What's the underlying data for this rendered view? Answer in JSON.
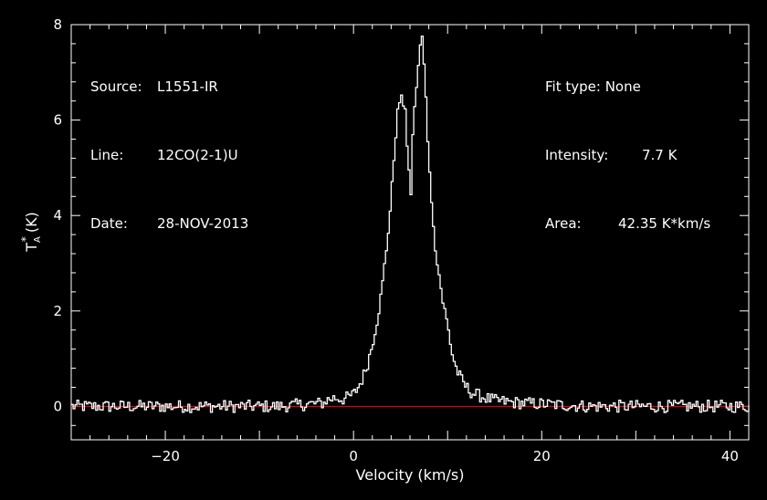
{
  "info": {
    "source_label": "Source:",
    "source_value": "L1551-IR",
    "line_label": "Line:",
    "line_value": "12CO(2-1)U",
    "date_label": "Date:",
    "date_value": "28-NOV-2013",
    "fit_label": "Fit type:",
    "fit_value": "None",
    "intensity_label": "Intensity:",
    "intensity_value": "7.7 K",
    "area_label": "Area:",
    "area_value": "42.35 K*km/s"
  },
  "chart_data": {
    "type": "line",
    "style": "step",
    "xlabel": "Velocity (km/s)",
    "ylabel_main": "T",
    "ylabel_sub": "A",
    "ylabel_sup": "*",
    "ylabel_unit": "(K)",
    "xlim": [
      -30,
      42
    ],
    "ylim": [
      -0.7,
      8
    ],
    "xticks": [
      -20,
      0,
      20,
      40
    ],
    "yticks": [
      0,
      2,
      4,
      6,
      8
    ],
    "grid": false,
    "colors": {
      "background": "#000000",
      "axes": "#ffffff",
      "spectrum": "#ffffff",
      "baseline": "#ff0000"
    },
    "baseline": 0,
    "series": [
      {
        "x": [
          -3,
          -2,
          -1,
          0,
          0.5,
          1,
          1.5,
          2,
          2.5,
          3,
          3.5,
          4,
          4.3,
          4.6,
          4.9,
          5.2,
          5.5,
          5.8,
          6.1,
          6.4,
          6.7,
          7,
          7.3,
          7.6,
          7.9,
          8.2,
          8.5,
          9,
          9.5,
          10,
          10.5,
          11,
          11.5,
          12,
          12.5,
          13,
          14,
          15,
          16,
          17
        ],
        "y": [
          0.12,
          0.18,
          0.15,
          0.25,
          0.4,
          0.6,
          0.9,
          1.3,
          1.8,
          2.4,
          3.3,
          4.3,
          5.2,
          6.0,
          6.4,
          6.4,
          6.3,
          5.0,
          4.5,
          6.2,
          6.6,
          7.5,
          7.7,
          6.9,
          5.5,
          4.7,
          3.7,
          2.9,
          2.2,
          1.7,
          1.1,
          0.75,
          0.55,
          0.4,
          0.3,
          0.25,
          0.18,
          0.12,
          0.1,
          0.08
        ]
      }
    ]
  }
}
